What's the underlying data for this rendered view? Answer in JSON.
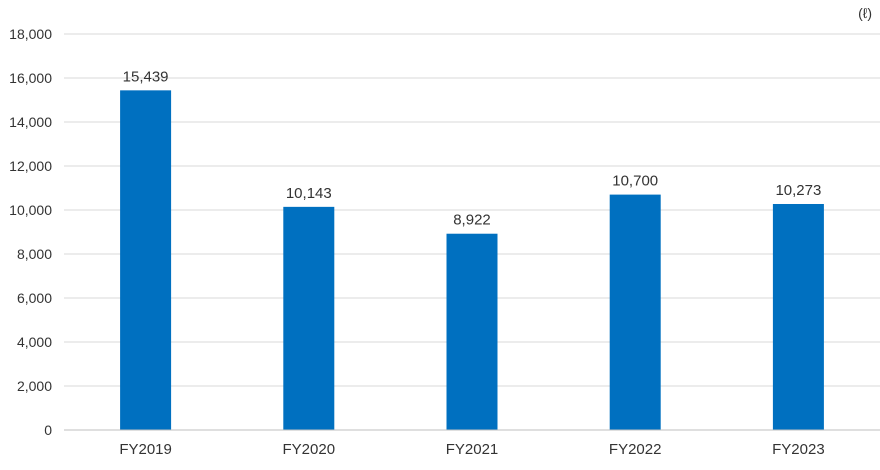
{
  "chart_data": {
    "type": "bar",
    "title": "",
    "xlabel": "",
    "ylabel": "",
    "unit": "(ℓ)",
    "categories": [
      "FY2019",
      "FY2020",
      "FY2021",
      "FY2022",
      "FY2023"
    ],
    "series": [
      {
        "values": [
          15439,
          10143,
          8922,
          10700,
          10273
        ],
        "value_labels": [
          "15,439",
          "10,143",
          "8,922",
          "10,700",
          "10,273"
        ],
        "color": "#0070C0"
      }
    ],
    "ylim": [
      0,
      18000
    ],
    "yticks": [
      0,
      2000,
      4000,
      6000,
      8000,
      10000,
      12000,
      14000,
      16000,
      18000
    ],
    "ytick_labels": [
      "0",
      "2,000",
      "4,000",
      "6,000",
      "8,000",
      "10,000",
      "12,000",
      "14,000",
      "16,000",
      "18,000"
    ],
    "grid": true,
    "legend": "none",
    "colors": {
      "bar": "#0070C0",
      "grid": "#D9D9D9",
      "axis": "#BFBFBF",
      "text": "#333333"
    }
  }
}
